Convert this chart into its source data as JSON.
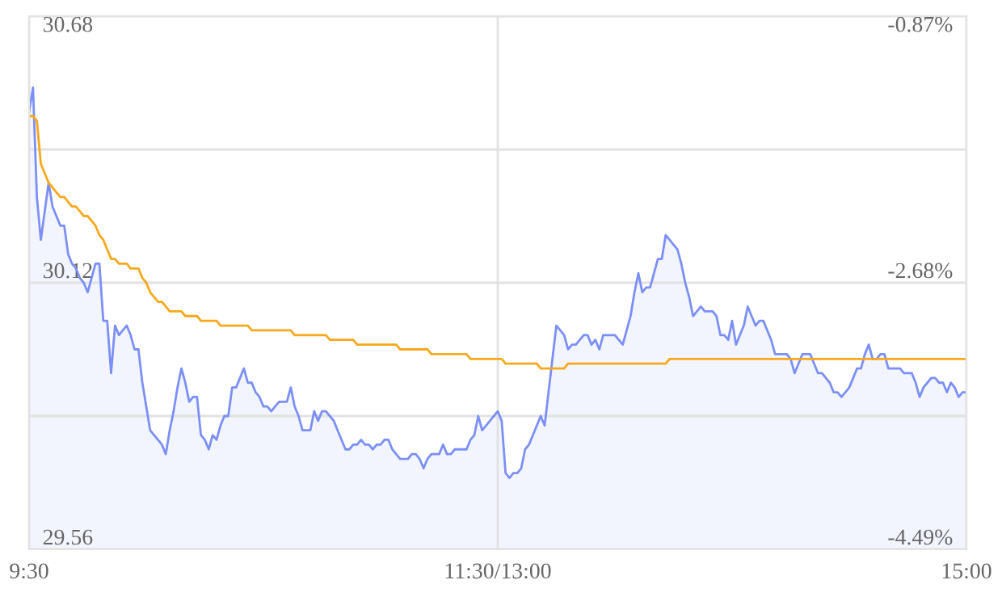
{
  "chart_data": {
    "type": "line",
    "categories": [
      "9:30",
      null,
      null,
      null,
      null,
      null,
      null,
      null,
      null,
      null,
      null,
      null,
      null,
      null,
      null,
      null,
      null,
      null,
      null,
      null,
      null,
      null,
      null,
      null,
      null,
      null,
      null,
      null,
      null,
      null,
      null,
      null,
      null,
      null,
      null,
      null,
      null,
      null,
      null,
      null,
      null,
      null,
      null,
      null,
      null,
      null,
      null,
      null,
      null,
      null,
      null,
      null,
      null,
      null,
      null,
      null,
      null,
      null,
      null,
      null,
      null,
      null,
      null,
      null,
      null,
      null,
      null,
      null,
      null,
      null,
      null,
      null,
      null,
      null,
      null,
      null,
      null,
      null,
      null,
      null,
      null,
      null,
      null,
      null,
      null,
      null,
      null,
      null,
      null,
      null,
      null,
      null,
      null,
      null,
      null,
      null,
      null,
      null,
      null,
      null,
      null,
      null,
      null,
      null,
      null,
      null,
      null,
      null,
      null,
      null,
      null,
      null,
      null,
      null,
      null,
      null,
      null,
      null,
      null,
      null,
      "11:30/13:00",
      null,
      null,
      null,
      null,
      null,
      null,
      null,
      null,
      null,
      null,
      null,
      null,
      null,
      null,
      null,
      null,
      null,
      null,
      null,
      null,
      null,
      null,
      null,
      null,
      null,
      null,
      null,
      null,
      null,
      null,
      null,
      null,
      null,
      null,
      null,
      null,
      null,
      null,
      null,
      null,
      null,
      null,
      null,
      null,
      null,
      null,
      null,
      null,
      null,
      null,
      null,
      null,
      null,
      null,
      null,
      null,
      null,
      null,
      null,
      null,
      null,
      null,
      null,
      null,
      null,
      null,
      null,
      null,
      null,
      null,
      null,
      null,
      null,
      null,
      null,
      null,
      null,
      null,
      null,
      null,
      null,
      null,
      null,
      null,
      null,
      null,
      null,
      null,
      null,
      null,
      null,
      null,
      null,
      null,
      null,
      null,
      null,
      null,
      null,
      null,
      null,
      null,
      null,
      null,
      null,
      null,
      null,
      null,
      null,
      null,
      null,
      null,
      null,
      null,
      null,
      null,
      null,
      null,
      null,
      "15:00"
    ],
    "ylim": [
      29.56,
      30.68
    ],
    "yticks": [
      29.56,
      {
        "value": 29.84,
        "label": null
      },
      30.12,
      {
        "value": 30.4,
        "label": null
      },
      30.68
    ],
    "y2lim": [
      -4.49,
      -0.87
    ],
    "y2ticks": [
      {
        "value": -4.49,
        "label": "-4.49%"
      },
      {
        "value": -2.68,
        "label": "-2.68%"
      },
      {
        "value": -0.87,
        "label": "-0.87%"
      }
    ],
    "grid": true,
    "series": [
      {
        "type": "area",
        "color": "#7b8ff7",
        "values": [
          30.48,
          30.53,
          30.3,
          30.21,
          30.27,
          30.33,
          30.28,
          30.26,
          30.24,
          30.24,
          30.18,
          30.16,
          30.15,
          30.13,
          30.12,
          30.1,
          30.13,
          30.16,
          30.16,
          30.04,
          30.04,
          29.93,
          30.03,
          30.01,
          30.02,
          30.03,
          30.01,
          29.98,
          29.98,
          29.91,
          29.86,
          29.81,
          29.8,
          29.79,
          29.78,
          29.76,
          29.81,
          29.85,
          29.9,
          29.94,
          29.91,
          29.87,
          29.88,
          29.88,
          29.8,
          29.79,
          29.77,
          29.8,
          29.79,
          29.82,
          29.84,
          29.84,
          29.9,
          29.9,
          29.92,
          29.94,
          29.91,
          29.91,
          29.89,
          29.88,
          29.86,
          29.86,
          29.85,
          29.86,
          29.87,
          29.87,
          29.87,
          29.9,
          29.86,
          29.84,
          29.81,
          29.81,
          29.81,
          29.85,
          29.83,
          29.85,
          29.85,
          29.84,
          29.83,
          29.81,
          29.79,
          29.77,
          29.77,
          29.78,
          29.78,
          29.79,
          29.78,
          29.78,
          29.77,
          29.78,
          29.78,
          29.79,
          29.79,
          29.77,
          29.76,
          29.75,
          29.75,
          29.75,
          29.76,
          29.76,
          29.75,
          29.73,
          29.75,
          29.76,
          29.76,
          29.76,
          29.78,
          29.76,
          29.76,
          29.77,
          29.77,
          29.77,
          29.77,
          29.79,
          29.8,
          29.84,
          29.81,
          29.82,
          29.83,
          29.84,
          29.85,
          29.83,
          29.72,
          29.71,
          29.72,
          29.72,
          29.73,
          29.77,
          29.78,
          29.8,
          29.82,
          29.84,
          29.82,
          29.89,
          29.96,
          30.03,
          30.02,
          30.01,
          29.98,
          29.99,
          29.99,
          30.0,
          30.01,
          30.01,
          29.99,
          30.0,
          29.98,
          30.01,
          30.01,
          30.01,
          30.01,
          30.0,
          29.99,
          30.02,
          30.05,
          30.1,
          30.14,
          30.1,
          30.11,
          30.11,
          30.14,
          30.17,
          30.17,
          30.22,
          30.21,
          30.2,
          30.19,
          30.16,
          30.12,
          30.09,
          30.05,
          30.06,
          30.07,
          30.06,
          30.06,
          30.06,
          30.05,
          30.01,
          30.01,
          30.0,
          30.04,
          29.99,
          30.01,
          30.03,
          30.07,
          30.05,
          30.03,
          30.04,
          30.04,
          30.02,
          30.0,
          29.97,
          29.97,
          29.97,
          29.97,
          29.96,
          29.93,
          29.95,
          29.97,
          29.97,
          29.97,
          29.95,
          29.93,
          29.93,
          29.92,
          29.91,
          29.89,
          29.89,
          29.88,
          29.89,
          29.9,
          29.92,
          29.94,
          29.94,
          29.97,
          29.99,
          29.96,
          29.96,
          29.97,
          29.97,
          29.94,
          29.94,
          29.94,
          29.94,
          29.93,
          29.93,
          29.93,
          29.91,
          29.88,
          29.9,
          29.91,
          29.92,
          29.92,
          29.91,
          29.91,
          29.89,
          29.91,
          29.9,
          29.88,
          29.89,
          29.89
        ]
      },
      {
        "color": "#f7a81b",
        "values": [
          30.47,
          30.47,
          30.46,
          30.37,
          30.35,
          30.33,
          30.32,
          30.31,
          30.3,
          30.3,
          30.29,
          30.28,
          30.28,
          30.27,
          30.26,
          30.26,
          30.25,
          30.24,
          30.22,
          30.21,
          30.19,
          30.17,
          30.17,
          30.16,
          30.16,
          30.16,
          30.15,
          30.15,
          30.15,
          30.13,
          30.12,
          30.1,
          30.09,
          30.08,
          30.08,
          30.07,
          30.06,
          30.06,
          30.06,
          30.06,
          30.05,
          30.05,
          30.05,
          30.05,
          30.04,
          30.04,
          30.04,
          30.04,
          30.04,
          30.03,
          30.03,
          30.03,
          30.03,
          30.03,
          30.03,
          30.03,
          30.03,
          30.02,
          30.02,
          30.02,
          30.02,
          30.02,
          30.02,
          30.02,
          30.02,
          30.02,
          30.02,
          30.02,
          30.01,
          30.01,
          30.01,
          30.01,
          30.01,
          30.01,
          30.01,
          30.01,
          30.01,
          30.0,
          30.0,
          30.0,
          30.0,
          30.0,
          30.0,
          30.0,
          29.99,
          29.99,
          29.99,
          29.99,
          29.99,
          29.99,
          29.99,
          29.99,
          29.99,
          29.99,
          29.99,
          29.98,
          29.98,
          29.98,
          29.98,
          29.98,
          29.98,
          29.98,
          29.98,
          29.97,
          29.97,
          29.97,
          29.97,
          29.97,
          29.97,
          29.97,
          29.97,
          29.97,
          29.97,
          29.96,
          29.96,
          29.96,
          29.96,
          29.96,
          29.96,
          29.96,
          29.96,
          29.96,
          29.95,
          29.95,
          29.95,
          29.95,
          29.95,
          29.95,
          29.95,
          29.95,
          29.95,
          29.94,
          29.94,
          29.94,
          29.94,
          29.94,
          29.94,
          29.94,
          29.95,
          29.95,
          29.95,
          29.95,
          29.95,
          29.95,
          29.95,
          29.95,
          29.95,
          29.95,
          29.95,
          29.95,
          29.95,
          29.95,
          29.95,
          29.95,
          29.95,
          29.95,
          29.95,
          29.95,
          29.95,
          29.95,
          29.95,
          29.95,
          29.95,
          29.95,
          29.96,
          29.96,
          29.96,
          29.96,
          29.96,
          29.96,
          29.96,
          29.96,
          29.96,
          29.96,
          29.96,
          29.96,
          29.96,
          29.96,
          29.96,
          29.96,
          29.96,
          29.96,
          29.96,
          29.96,
          29.96,
          29.96,
          29.96,
          29.96,
          29.96,
          29.96,
          29.96,
          29.96,
          29.96,
          29.96,
          29.96,
          29.96,
          29.96,
          29.96,
          29.96,
          29.96,
          29.96,
          29.96,
          29.96,
          29.96,
          29.96,
          29.96,
          29.96,
          29.96,
          29.96,
          29.96,
          29.96,
          29.96,
          29.96,
          29.96,
          29.96,
          29.96,
          29.96,
          29.96,
          29.96,
          29.96,
          29.96,
          29.96,
          29.96,
          29.96,
          29.96,
          29.96,
          29.96,
          29.96,
          29.96,
          29.96,
          29.96,
          29.96,
          29.96,
          29.96,
          29.96,
          29.96,
          29.96,
          29.96,
          29.96,
          29.96,
          29.96
        ]
      }
    ]
  }
}
